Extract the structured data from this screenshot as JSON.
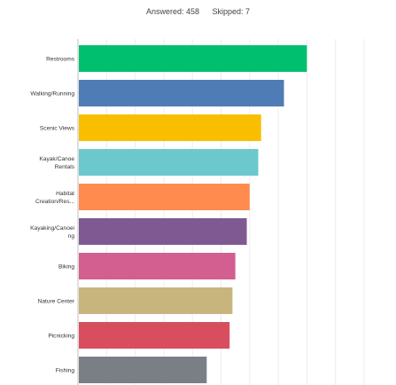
{
  "summary": {
    "answered": "Answered: 458",
    "skipped": "Skipped: 7"
  },
  "chart_data": {
    "type": "bar",
    "orientation": "horizontal",
    "categories": [
      [
        "Restrooms"
      ],
      [
        "Walking/Running"
      ],
      [
        "Scenic Views"
      ],
      [
        "Kayak/Canoe",
        "Rentals"
      ],
      [
        "Habitat",
        "Creation/Res..."
      ],
      [
        "Kayaking/Canoei",
        "ng"
      ],
      [
        "Biking"
      ],
      [
        "Nature Center"
      ],
      [
        "Picnicking"
      ],
      [
        "Fishing"
      ]
    ],
    "values": [
      80,
      72,
      64,
      63,
      60,
      59,
      55,
      54,
      53,
      45
    ],
    "colors": [
      "#00bf6f",
      "#507cb6",
      "#f9be00",
      "#6bc8cd",
      "#ff8b4f",
      "#7f5a92",
      "#d25f90",
      "#c8b57e",
      "#d84e5f",
      "#7a7f86"
    ],
    "xlim": [
      0,
      100
    ],
    "grid": true,
    "legend": "none"
  }
}
